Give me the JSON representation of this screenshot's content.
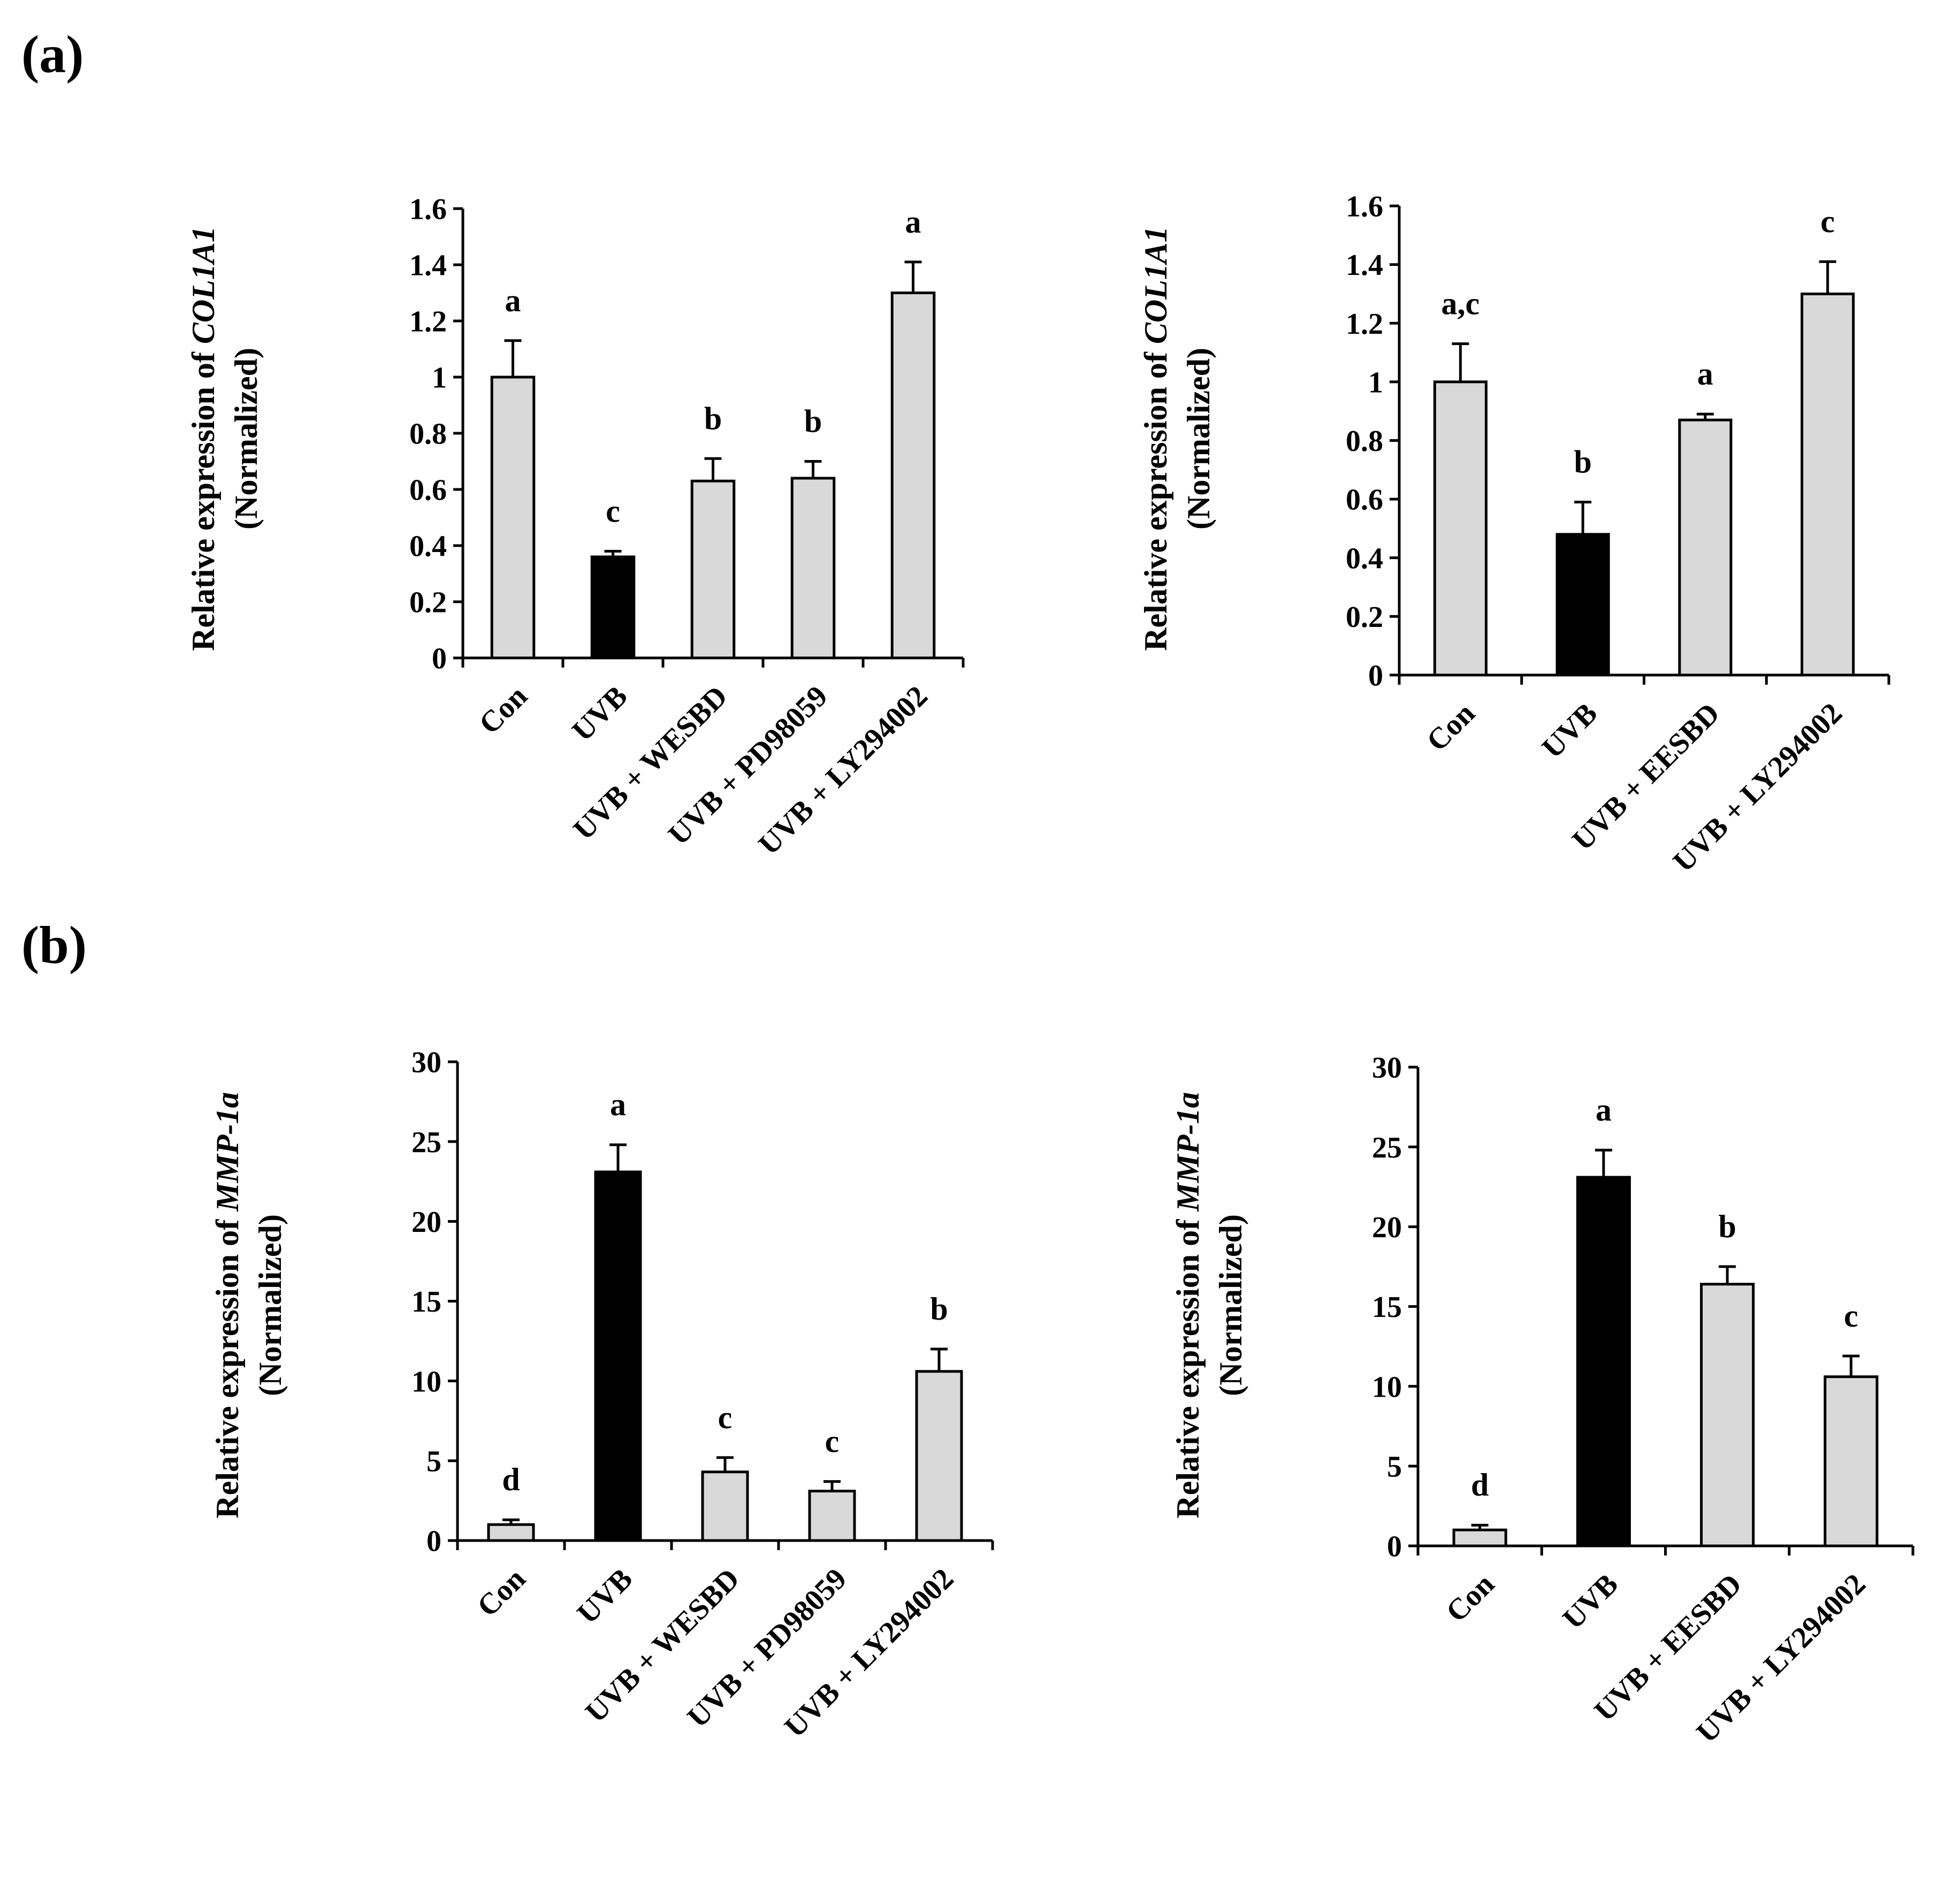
{
  "panel_labels": [
    "(a)",
    "(b)"
  ],
  "colors": {
    "control_bar": "#d9d9d9",
    "uvb_bar": "#000000",
    "bar_outline": "#000000"
  },
  "chart_data": [
    {
      "type": "bar",
      "panel": "(a)",
      "ylabel_prefix": "Relative expression of ",
      "ylabel_gene": "COL1A1",
      "ylabel_line2": "(Normalized)",
      "categories": [
        "Con",
        "UVB",
        "UVB + WESBD",
        "UVB + PD98059",
        "UVB + LY294002"
      ],
      "values": [
        1.0,
        0.36,
        0.63,
        0.64,
        1.3
      ],
      "errors": [
        0.13,
        0.02,
        0.08,
        0.06,
        0.11
      ],
      "letters": [
        "a",
        "c",
        "b",
        "b",
        "a"
      ],
      "bar_colors": [
        "#d9d9d9",
        "#000000",
        "#d9d9d9",
        "#d9d9d9",
        "#d9d9d9"
      ],
      "ylim": [
        0,
        1.6
      ],
      "yticks": [
        "0",
        "0.2",
        "0.4",
        "0.6",
        "0.8",
        "1",
        "1.2",
        "1.4",
        "1.6"
      ]
    },
    {
      "type": "bar",
      "panel": "(a)",
      "ylabel_prefix": "Relative expression of ",
      "ylabel_gene": "COL1A1",
      "ylabel_line2": "(Normalized)",
      "categories": [
        "Con",
        "UVB",
        "UVB + EESBD",
        "UVB + LY294002"
      ],
      "values": [
        1.0,
        0.48,
        0.87,
        1.3
      ],
      "errors": [
        0.13,
        0.11,
        0.02,
        0.11
      ],
      "letters": [
        "a,c",
        "b",
        "a",
        "c"
      ],
      "bar_colors": [
        "#d9d9d9",
        "#000000",
        "#d9d9d9",
        "#d9d9d9"
      ],
      "ylim": [
        0,
        1.6
      ],
      "yticks": [
        "0",
        "0.2",
        "0.4",
        "0.6",
        "0.8",
        "1",
        "1.2",
        "1.4",
        "1.6"
      ]
    },
    {
      "type": "bar",
      "panel": "(b)",
      "ylabel_prefix": "Relative expression of ",
      "ylabel_gene": "MMP-1a",
      "ylabel_line2": "(Normalized)",
      "categories": [
        "Con",
        "UVB",
        "UVB + WESBD",
        "UVB + PD98059",
        "UVB + LY294002"
      ],
      "values": [
        1.0,
        23.1,
        4.3,
        3.1,
        10.6
      ],
      "errors": [
        0.3,
        1.7,
        0.9,
        0.6,
        1.4
      ],
      "letters": [
        "d",
        "a",
        "c",
        "c",
        "b"
      ],
      "bar_colors": [
        "#d9d9d9",
        "#000000",
        "#d9d9d9",
        "#d9d9d9",
        "#d9d9d9"
      ],
      "ylim": [
        0,
        30
      ],
      "yticks": [
        "0",
        "5",
        "10",
        "15",
        "20",
        "25",
        "30"
      ]
    },
    {
      "type": "bar",
      "panel": "(b)",
      "ylabel_prefix": "Relative expression of ",
      "ylabel_gene": "MMP-1a",
      "ylabel_line2": "(Normalized)",
      "categories": [
        "Con",
        "UVB",
        "UVB + EESBD",
        "UVB + LY294002"
      ],
      "values": [
        1.0,
        23.1,
        16.4,
        10.6
      ],
      "errors": [
        0.3,
        1.7,
        1.1,
        1.3
      ],
      "letters": [
        "d",
        "a",
        "b",
        "c"
      ],
      "bar_colors": [
        "#d9d9d9",
        "#000000",
        "#d9d9d9",
        "#d9d9d9"
      ],
      "ylim": [
        0,
        30
      ],
      "yticks": [
        "0",
        "5",
        "10",
        "15",
        "20",
        "25",
        "30"
      ]
    }
  ]
}
